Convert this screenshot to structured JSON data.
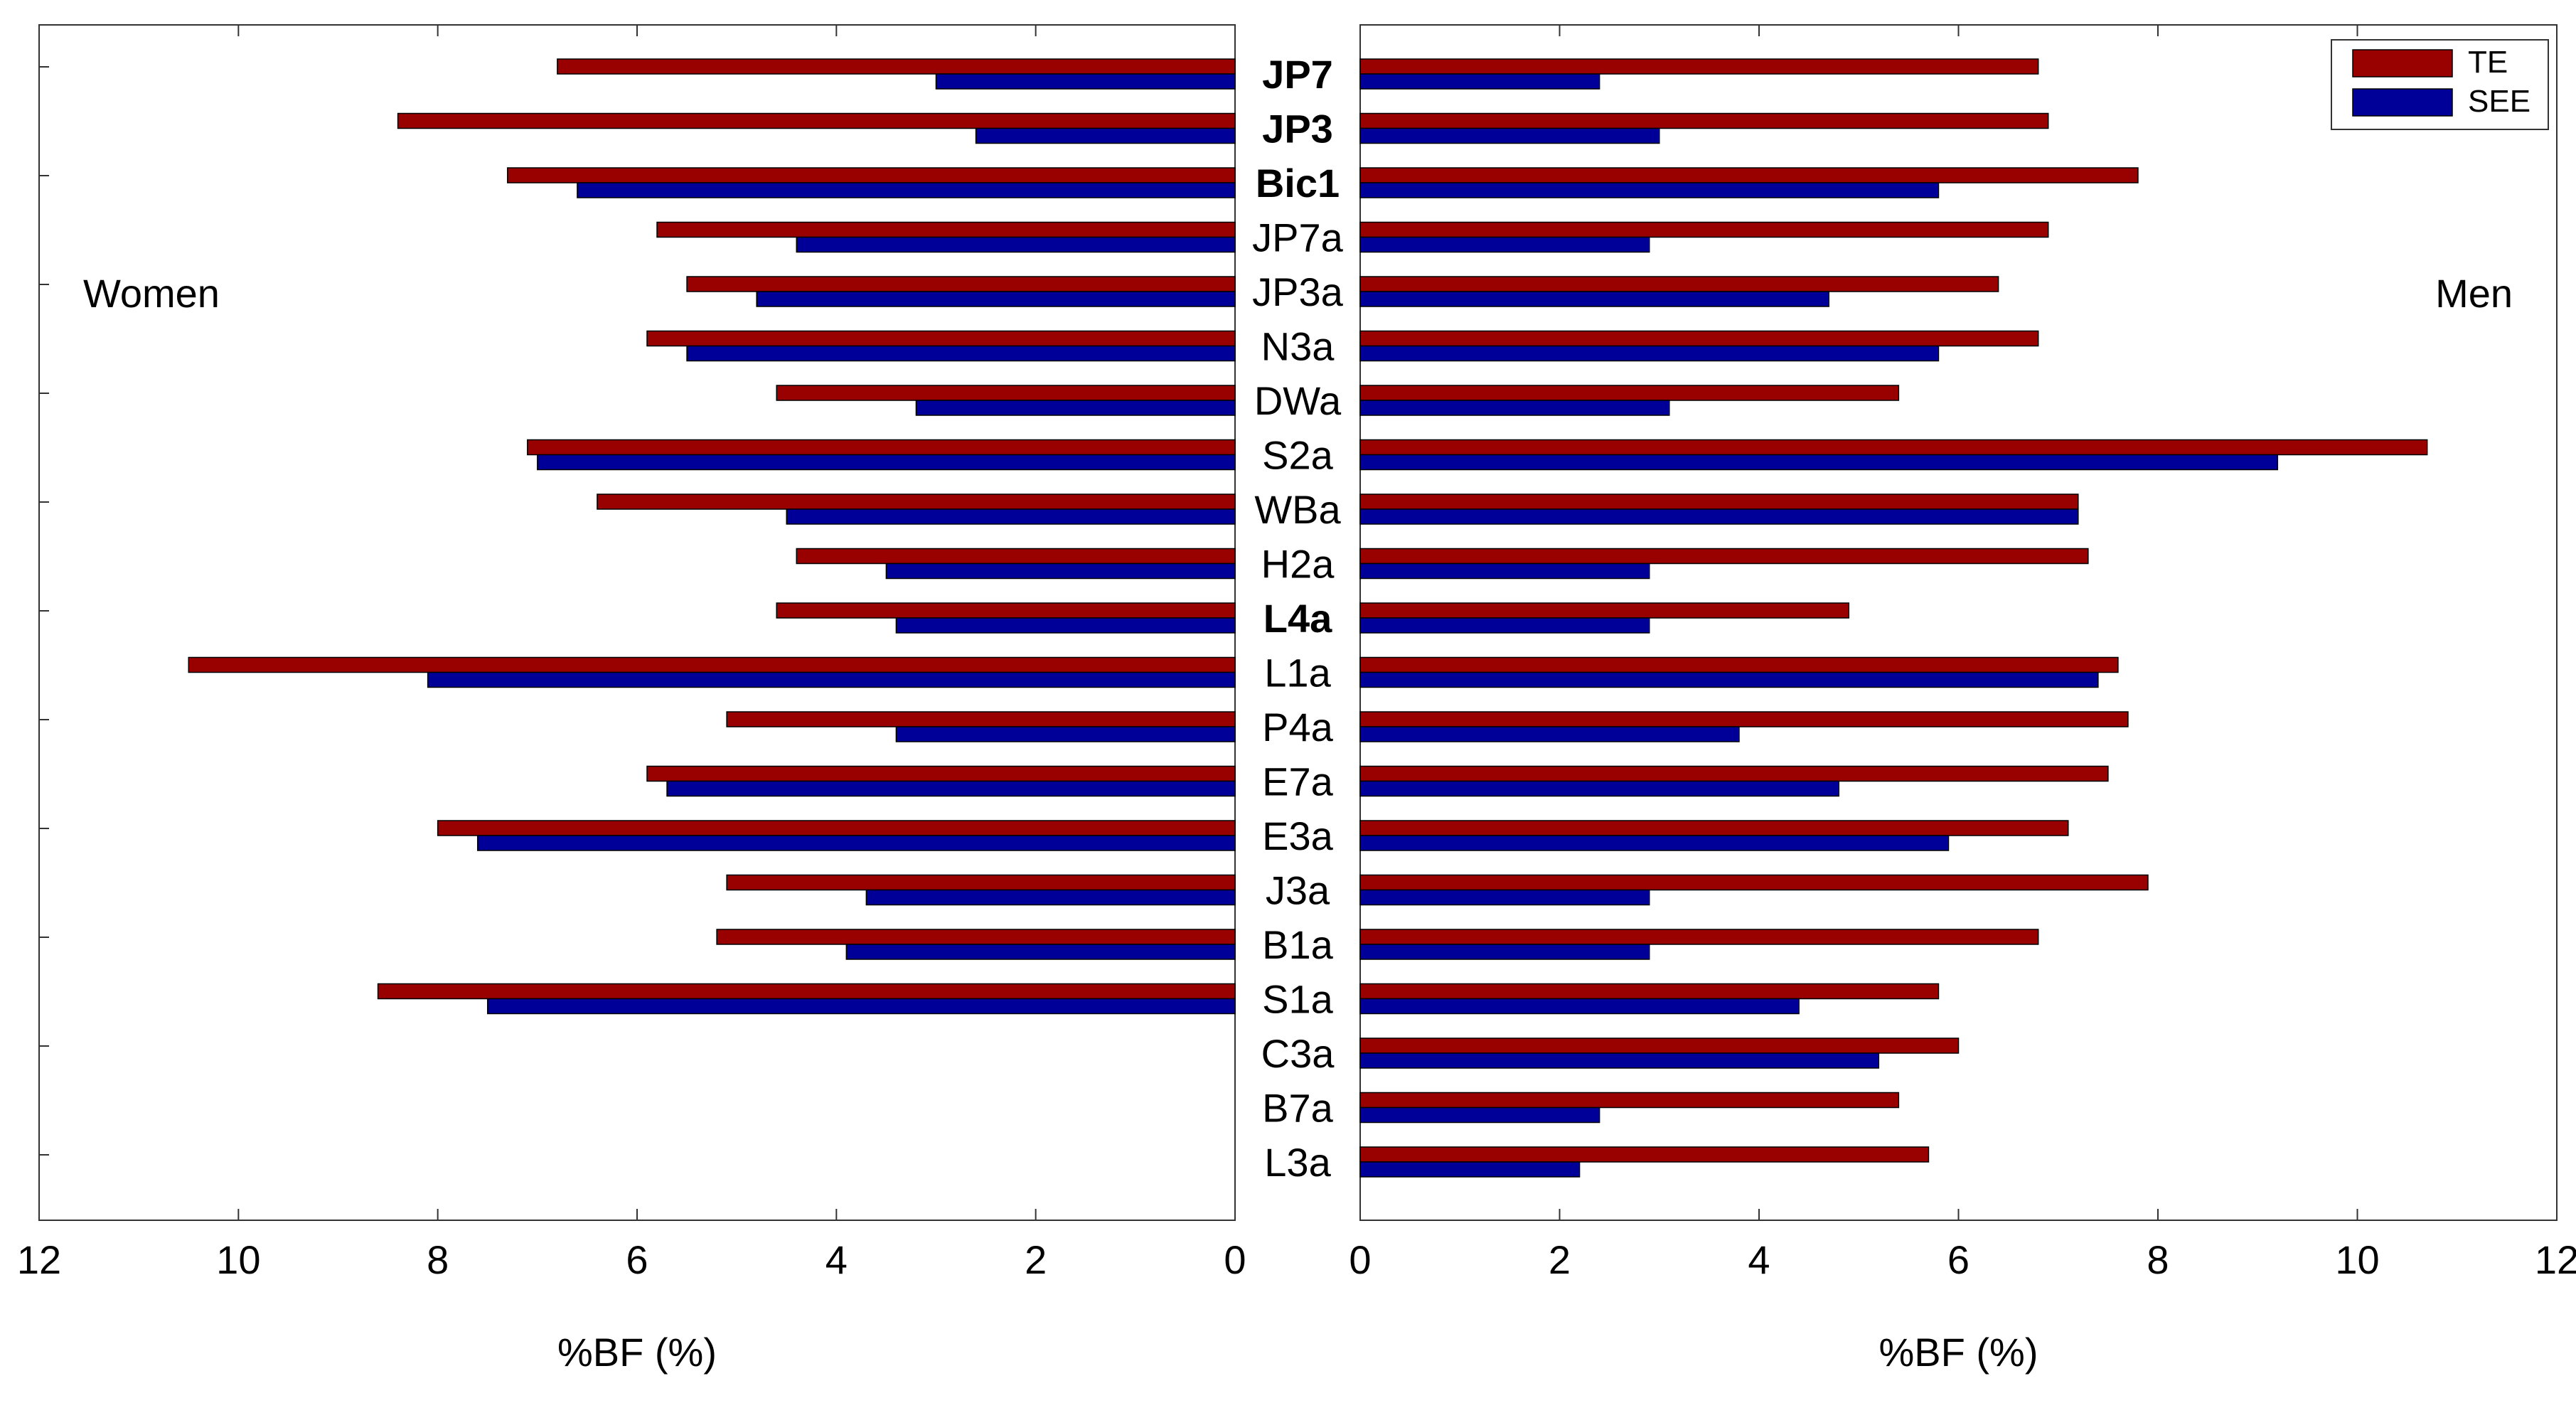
{
  "chart_data": {
    "type": "bar",
    "orientation": "horizontal",
    "layout": "butterfly",
    "categories": [
      "JP7",
      "JP3",
      "Bic1",
      "JP7a",
      "JP3a",
      "N3a",
      "DWa",
      "S2a",
      "WBa",
      "H2a",
      "L4a",
      "L1a",
      "P4a",
      "E7a",
      "E3a",
      "J3a",
      "B1a",
      "S1a",
      "C3a",
      "B7a",
      "L3a"
    ],
    "bold_categories": [
      "JP7",
      "JP3",
      "Bic1",
      "L4a"
    ],
    "legend": {
      "entries": [
        "TE",
        "SEE"
      ],
      "placement": "top-right"
    },
    "colors": {
      "TE": "#990000",
      "SEE": "#000099"
    },
    "grid": false,
    "panels": [
      {
        "id": "women",
        "label": "Women",
        "xlabel": "%BF (%)",
        "xlim": [
          12,
          0
        ],
        "reversed": true,
        "ticks": [
          "12",
          "10",
          "8",
          "6",
          "4",
          "2",
          "0"
        ],
        "series": [
          {
            "name": "TE",
            "values": [
              6.8,
              8.4,
              7.3,
              5.8,
              5.5,
              5.9,
              4.6,
              7.1,
              6.4,
              4.4,
              4.6,
              10.5,
              5.1,
              5.9,
              8.0,
              5.1,
              5.2,
              8.6,
              null,
              null,
              null
            ]
          },
          {
            "name": "SEE",
            "values": [
              3.0,
              2.6,
              6.6,
              4.4,
              4.8,
              5.5,
              3.2,
              7.0,
              4.5,
              3.5,
              3.4,
              8.1,
              3.4,
              5.7,
              7.6,
              3.7,
              3.9,
              7.5,
              null,
              null,
              null
            ]
          }
        ]
      },
      {
        "id": "men",
        "label": "Men",
        "xlabel": "%BF (%)",
        "xlim": [
          0,
          12
        ],
        "reversed": false,
        "ticks": [
          "0",
          "2",
          "4",
          "6",
          "8",
          "10",
          "12"
        ],
        "series": [
          {
            "name": "TE",
            "values": [
              6.8,
              6.9,
              7.8,
              6.9,
              6.4,
              6.8,
              5.4,
              10.7,
              7.2,
              7.3,
              4.9,
              7.6,
              7.7,
              7.5,
              7.1,
              7.9,
              6.8,
              5.8,
              6.0,
              5.4,
              5.7
            ]
          },
          {
            "name": "SEE",
            "values": [
              2.4,
              3.0,
              5.8,
              2.9,
              4.7,
              5.8,
              3.1,
              9.2,
              7.2,
              2.9,
              2.9,
              7.4,
              3.8,
              4.8,
              5.9,
              2.9,
              2.9,
              4.4,
              5.2,
              2.4,
              2.2
            ]
          }
        ]
      }
    ]
  }
}
